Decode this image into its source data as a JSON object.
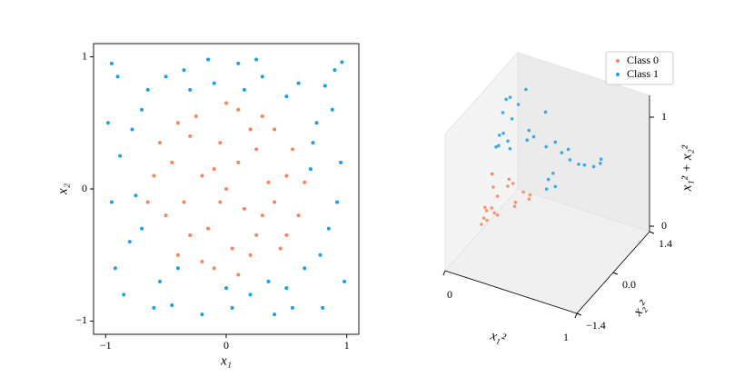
{
  "chart_data": [
    {
      "type": "scatter",
      "xlabel": "x₁",
      "ylabel": "x₂",
      "xlim": [
        -1.1,
        1.1
      ],
      "ylim": [
        -1.1,
        1.1
      ],
      "xticks": [
        {
          "value": -1,
          "label": "−1"
        },
        0,
        1
      ],
      "yticks": [
        {
          "value": -1,
          "label": "−1"
        },
        0,
        1
      ],
      "series": [
        {
          "name": "Class 0",
          "color": "#f8845a",
          "x": [
            0.1,
            -0.3,
            0.5,
            -0.5,
            0.2,
            -0.1,
            0.4,
            -0.6,
            0.0,
            0.3,
            -0.2,
            0.6,
            -0.4,
            0.1,
            -0.05,
            0.25,
            -0.35,
            0.45,
            -0.15,
            0.55,
            -0.55,
            0.15,
            -0.25,
            0.35,
            -0.45,
            0.05,
            0.2,
            -0.1,
            0.5,
            -0.3,
            0.65,
            -0.65,
            0.0,
            0.1,
            -0.2,
            0.3,
            -0.4,
            0.4,
            -0.05,
            0.25
          ],
          "y": [
            0.2,
            0.4,
            0.1,
            -0.2,
            -0.5,
            -0.6,
            0.45,
            0.1,
            0.0,
            -0.2,
            0.1,
            -0.2,
            -0.5,
            0.6,
            0.35,
            0.3,
            -0.1,
            -0.45,
            -0.3,
            0.3,
            0.35,
            -0.15,
            0.55,
            0.05,
            0.2,
            -0.45,
            0.45,
            0.15,
            -0.35,
            -0.35,
            0.05,
            -0.1,
            0.65,
            -0.65,
            -0.55,
            0.55,
            0.5,
            -0.1,
            -0.1,
            -0.35
          ]
        },
        {
          "name": "Class 1",
          "color": "#1a9ee8",
          "x": [
            0.9,
            -0.9,
            0.8,
            -0.85,
            0.95,
            -0.95,
            0.1,
            -0.2,
            0.75,
            -0.7,
            0.5,
            -0.55,
            0.3,
            -0.35,
            0.85,
            -0.8,
            0.6,
            -0.6,
            0.98,
            -0.98,
            0.4,
            -0.1,
            0.7,
            -0.75,
            0.2,
            0.65,
            -0.65,
            0.88,
            -0.88,
            0.05,
            -0.45,
            0.5,
            -0.3,
            0.92,
            -0.92,
            0.15,
            0.78,
            -0.5,
            0.35,
            -0.95,
            0.96,
            -0.7,
            0.72,
            0.0,
            -0.15,
            0.55,
            -0.78,
            0.82,
            -0.4,
            0.25
          ],
          "y": [
            0.9,
            0.85,
            -0.9,
            -0.8,
            0.2,
            -0.1,
            0.95,
            -0.95,
            0.5,
            0.6,
            -0.75,
            -0.7,
            0.85,
            0.9,
            -0.3,
            -0.4,
            0.8,
            -0.9,
            -0.7,
            0.5,
            -0.95,
            0.8,
            0.15,
            -0.05,
            -0.8,
            -0.6,
            0.75,
            0.6,
            0.25,
            -0.9,
            -0.88,
            0.7,
            0.75,
            -0.1,
            -0.6,
            0.75,
            -0.5,
            0.85,
            -0.7,
            0.95,
            0.96,
            -0.3,
            0.35,
            -0.75,
            0.98,
            -0.9,
            0.45,
            0.78,
            -0.6,
            0.98
          ]
        }
      ]
    },
    {
      "type": "scatter3d",
      "xlabel": "x₁²",
      "ylabel": "x₂²",
      "zlabel": "x₁² + x₂²",
      "xlim": [
        0,
        1
      ],
      "ylim": [
        -1.4,
        1.4
      ],
      "zlim": [
        -0.05,
        1.2
      ],
      "xticks": [
        0,
        1
      ],
      "yticks": [
        {
          "value": -1.4,
          "label": "−1.4"
        },
        {
          "value": 0,
          "label": "0.0"
        },
        1.4
      ],
      "zticks": [
        0,
        1
      ],
      "legend": "upper right",
      "series": [
        {
          "name": "Class 0",
          "color": "#f8845a",
          "x": [
            0.01,
            0.09,
            0.25,
            0.25,
            0.04,
            0.01,
            0.16,
            0.36,
            0,
            0.09,
            0.04,
            0.36,
            0.16,
            0.01,
            0.003,
            0.06,
            0.12,
            0.2,
            0.02,
            0.3
          ],
          "y": [
            0.04,
            0.16,
            0.01,
            0.04,
            0.25,
            0.36,
            0.2,
            0.01,
            0,
            0.04,
            0.01,
            0.04,
            0.25,
            0.36,
            0.12,
            0.09,
            0.01,
            0.2,
            0.09,
            0.09
          ],
          "z": [
            0.05,
            0.25,
            0.26,
            0.29,
            0.29,
            0.37,
            0.36,
            0.37,
            0,
            0.13,
            0.05,
            0.4,
            0.41,
            0.37,
            0.125,
            0.15,
            0.13,
            0.4,
            0.11,
            0.39
          ]
        },
        {
          "name": "Class 1",
          "color": "#1a9ee8",
          "x": [
            0.9,
            0.9,
            0.01,
            0.04,
            0.56,
            0.49,
            0.25,
            0.3,
            0.09,
            0.12,
            0.72,
            0.64,
            0.36,
            0.16,
            0.01,
            0.49,
            0.56,
            0.04,
            0.42,
            0.77,
            0.003,
            0.25,
            0.09,
            0.85,
            0.02,
            0.61,
            0.12,
            0.49,
            0.52,
            0
          ],
          "y": [
            0.04,
            0.01,
            0.9,
            0.9,
            0.25,
            0.36,
            0.56,
            0.49,
            0.72,
            0.81,
            0.09,
            0.16,
            0.64,
            0.9,
            0.64,
            0.02,
            0.003,
            0.64,
            0.36,
            0.06,
            0.81,
            0.49,
            0.56,
            0.01,
            0.56,
            0.25,
            0.49,
            0.09,
            0.12,
            0.56
          ],
          "z": [
            0.94,
            0.91,
            0.91,
            0.94,
            0.81,
            0.85,
            0.81,
            0.79,
            0.81,
            0.93,
            0.81,
            0.8,
            1,
            1.06,
            0.65,
            0.51,
            0.565,
            0.68,
            0.78,
            0.83,
            0.81,
            0.74,
            0.65,
            0.86,
            0.58,
            0.86,
            0.61,
            0.58,
            0.64,
            0.56
          ]
        }
      ]
    }
  ]
}
